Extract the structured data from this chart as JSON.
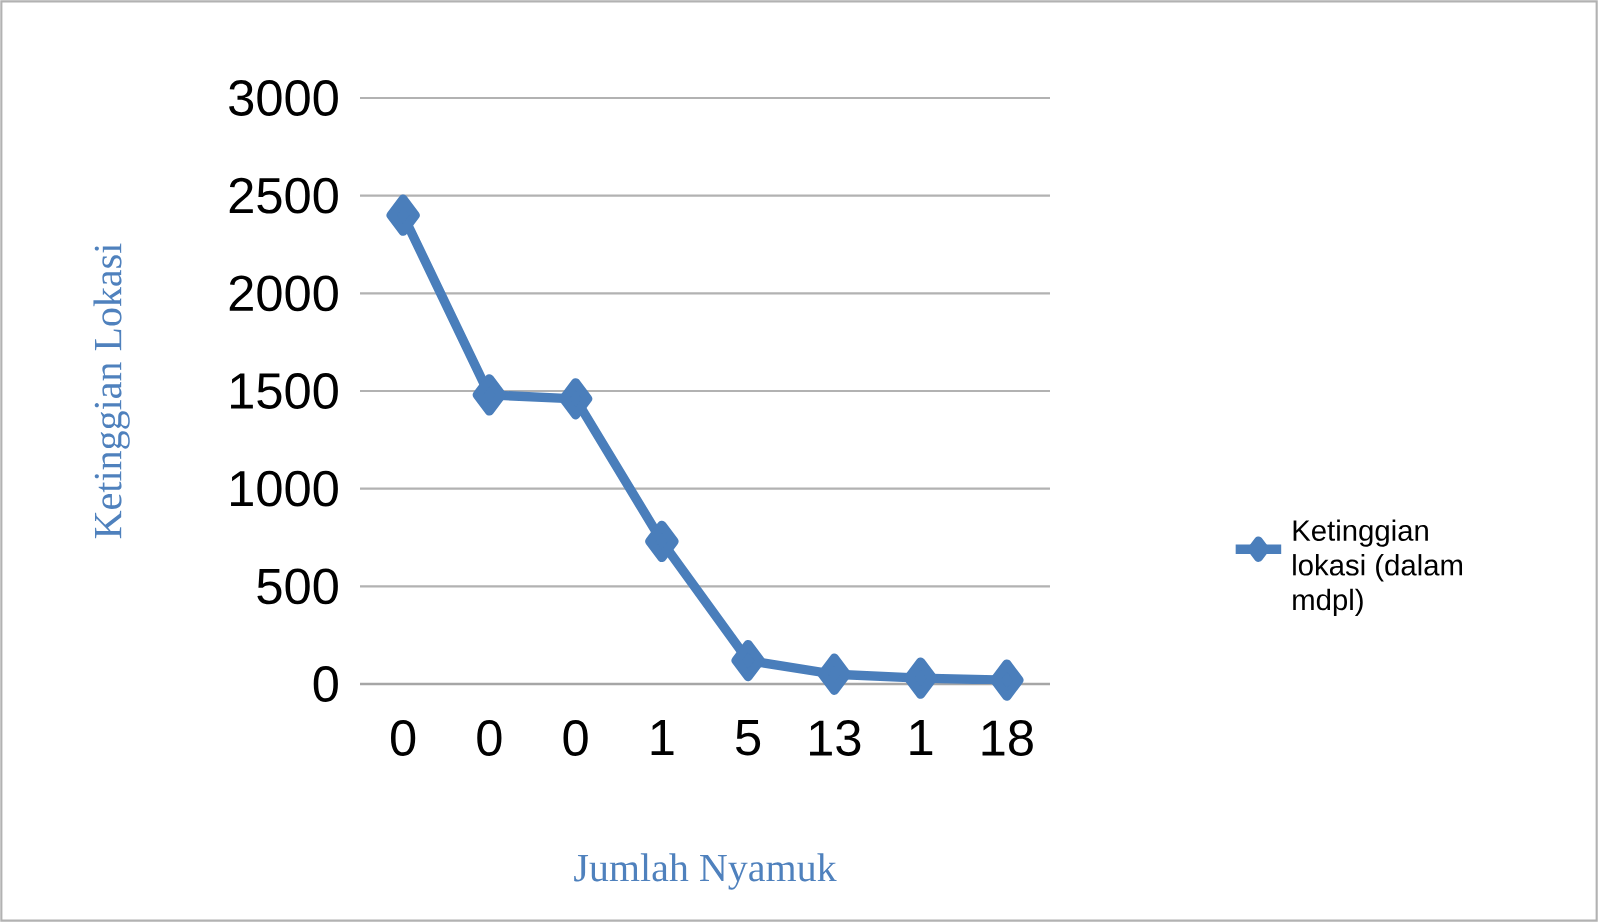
{
  "chart_data": {
    "type": "line",
    "xlabel": "Jumlah Nyamuk",
    "ylabel": "Ketinggian Lokasi",
    "categories": [
      "0",
      "0",
      "0",
      "1",
      "5",
      "13",
      "1",
      "18"
    ],
    "series": [
      {
        "name": "Ketinggian lokasi (dalam mdpl)",
        "color": "#4a7ebb",
        "values": [
          2400,
          1480,
          1460,
          730,
          120,
          50,
          30,
          20
        ]
      }
    ],
    "ylim": [
      0,
      3000
    ],
    "yticks": [
      0,
      500,
      1000,
      1500,
      2000,
      2500,
      3000
    ],
    "grid": "y",
    "legend": "right",
    "marker": "diamond",
    "line_style": "solid"
  }
}
